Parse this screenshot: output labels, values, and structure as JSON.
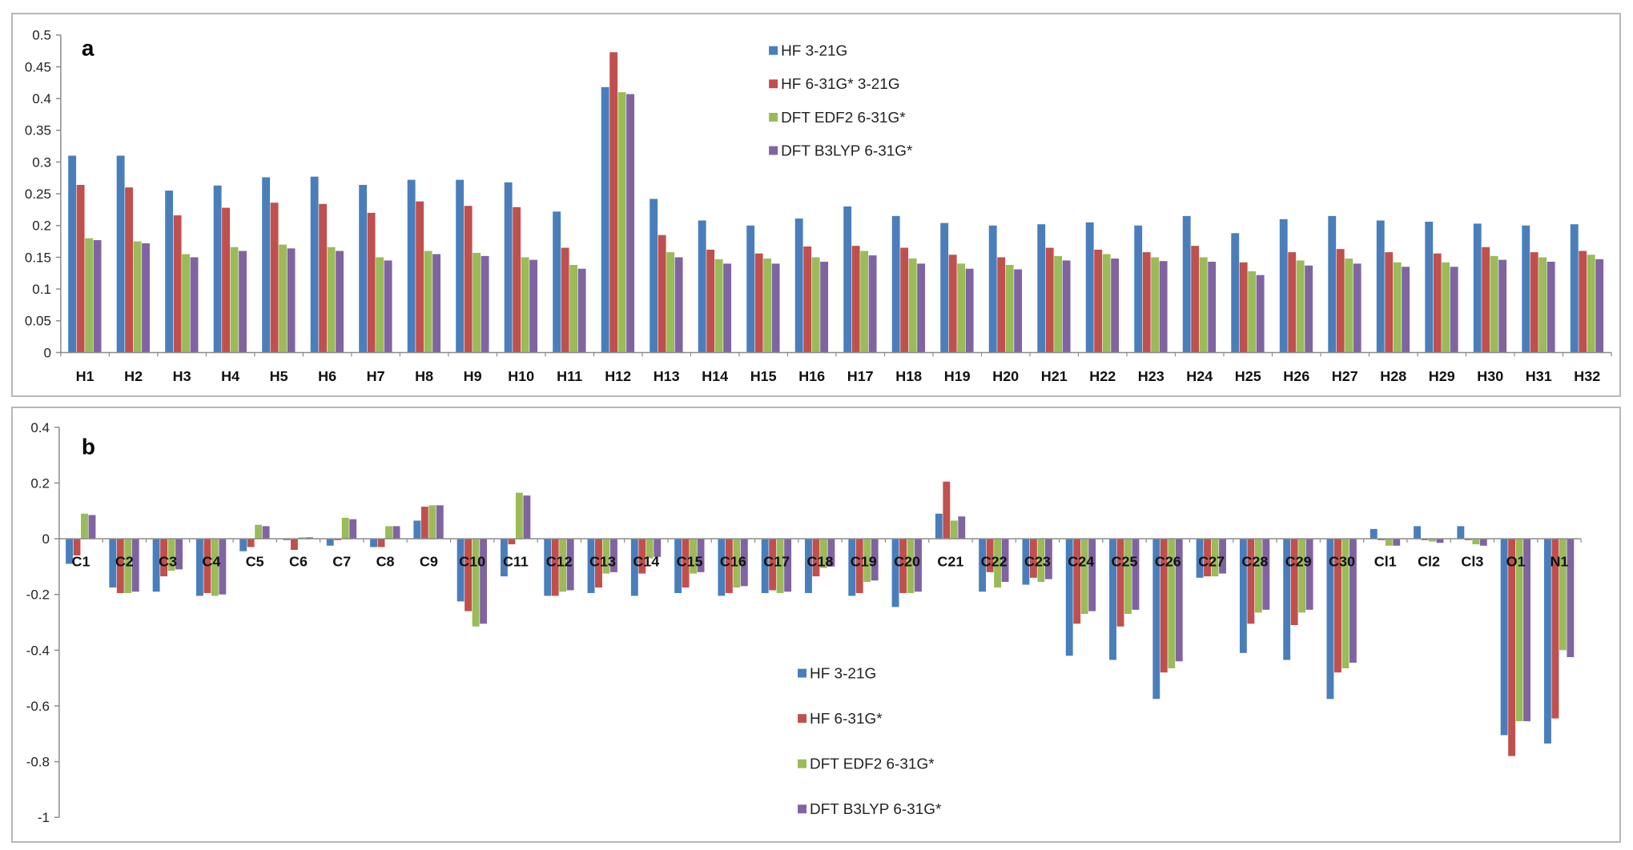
{
  "colors": {
    "hf321g": "#4a7ebb",
    "hf631g": "#c0504d",
    "edf2": "#9bbb59",
    "b3lyp": "#8064a2",
    "axis": "#8c8c8c",
    "grid": "#d9d9d9"
  },
  "chart_data": [
    {
      "type": "bar",
      "panel_label": "a",
      "categories": [
        "H1",
        "H2",
        "H3",
        "H4",
        "H5",
        "H6",
        "H7",
        "H8",
        "H9",
        "H10",
        "H11",
        "H12",
        "H13",
        "H14",
        "H15",
        "H16",
        "H17",
        "H18",
        "H19",
        "H20",
        "H21",
        "H22",
        "H23",
        "H24",
        "H25",
        "H26",
        "H27",
        "H28",
        "H29",
        "H30",
        "H31",
        "H32"
      ],
      "ylim": [
        0,
        0.5
      ],
      "yticks": [
        "0",
        "0.05",
        "0.1",
        "0.15",
        "0.2",
        "0.25",
        "0.3",
        "0.35",
        "0.4",
        "0.45",
        "0.5"
      ],
      "ytick_values": [
        0,
        0.05,
        0.1,
        0.15,
        0.2,
        0.25,
        0.3,
        0.35,
        0.4,
        0.45,
        0.5
      ],
      "legend_position": "top-center",
      "series": [
        {
          "name": "HF 3-21G",
          "color_key": "hf321g",
          "values": [
            0.31,
            0.31,
            0.255,
            0.263,
            0.276,
            0.277,
            0.264,
            0.272,
            0.272,
            0.268,
            0.222,
            0.418,
            0.242,
            0.208,
            0.2,
            0.211,
            0.23,
            0.215,
            0.204,
            0.2,
            0.202,
            0.205,
            0.2,
            0.215,
            0.188,
            0.21,
            0.215,
            0.208,
            0.206,
            0.203,
            0.2,
            0.202
          ]
        },
        {
          "name": "HF 6-31G* 3-21G",
          "color_key": "hf631g",
          "values": [
            0.264,
            0.26,
            0.216,
            0.228,
            0.236,
            0.234,
            0.22,
            0.238,
            0.231,
            0.229,
            0.165,
            0.473,
            0.185,
            0.162,
            0.156,
            0.167,
            0.168,
            0.165,
            0.154,
            0.15,
            0.165,
            0.162,
            0.158,
            0.168,
            0.142,
            0.158,
            0.163,
            0.158,
            0.156,
            0.166,
            0.158,
            0.16
          ]
        },
        {
          "name": "DFT EDF2 6-31G*",
          "color_key": "edf2",
          "values": [
            0.18,
            0.175,
            0.155,
            0.166,
            0.17,
            0.166,
            0.15,
            0.16,
            0.157,
            0.15,
            0.138,
            0.41,
            0.158,
            0.147,
            0.148,
            0.15,
            0.16,
            0.148,
            0.14,
            0.138,
            0.152,
            0.155,
            0.15,
            0.15,
            0.128,
            0.145,
            0.148,
            0.142,
            0.142,
            0.152,
            0.15,
            0.154
          ]
        },
        {
          "name": "DFT B3LYP 6-31G*",
          "color_key": "b3lyp",
          "values": [
            0.177,
            0.172,
            0.15,
            0.16,
            0.164,
            0.16,
            0.145,
            0.155,
            0.152,
            0.146,
            0.132,
            0.407,
            0.15,
            0.14,
            0.14,
            0.143,
            0.153,
            0.14,
            0.132,
            0.131,
            0.145,
            0.148,
            0.144,
            0.143,
            0.122,
            0.137,
            0.14,
            0.135,
            0.135,
            0.146,
            0.143,
            0.147
          ]
        }
      ]
    },
    {
      "type": "bar",
      "panel_label": "b",
      "categories": [
        "C1",
        "C2",
        "C3",
        "C4",
        "C5",
        "C6",
        "C7",
        "C8",
        "C9",
        "C10",
        "C11",
        "C12",
        "C13",
        "C14",
        "C15",
        "C16",
        "C17",
        "C18",
        "C19",
        "C20",
        "C21",
        "C22",
        "C23",
        "C24",
        "C25",
        "C26",
        "C27",
        "C28",
        "C29",
        "C30",
        "Cl1",
        "Cl2",
        "Cl3",
        "O1",
        "N1"
      ],
      "ylim": [
        -1,
        0.4
      ],
      "yticks": [
        "0.4",
        "0.2",
        "0",
        "-0.2",
        "-0.4",
        "-0.6",
        "-0.8",
        "-1"
      ],
      "ytick_values": [
        0.4,
        0.2,
        0,
        -0.2,
        -0.4,
        -0.6,
        -0.8,
        -1
      ],
      "legend_position": "bottom-center",
      "series": [
        {
          "name": "HF 3-21G",
          "color_key": "hf321g",
          "values": [
            -0.09,
            -0.175,
            -0.19,
            -0.205,
            -0.045,
            -0.005,
            -0.025,
            -0.03,
            0.065,
            -0.225,
            -0.135,
            -0.205,
            -0.195,
            -0.205,
            -0.195,
            -0.205,
            -0.195,
            -0.195,
            -0.205,
            -0.245,
            0.09,
            -0.19,
            -0.165,
            -0.42,
            -0.435,
            -0.575,
            -0.14,
            -0.41,
            -0.435,
            -0.575,
            0.035,
            0.045,
            0.045,
            -0.705,
            -0.735
          ]
        },
        {
          "name": "HF 6-31G*",
          "color_key": "hf631g",
          "values": [
            -0.06,
            -0.195,
            -0.135,
            -0.195,
            -0.03,
            -0.04,
            -0.005,
            -0.03,
            0.115,
            -0.26,
            -0.02,
            -0.205,
            -0.175,
            -0.125,
            -0.175,
            -0.195,
            -0.185,
            -0.135,
            -0.195,
            -0.195,
            0.205,
            -0.12,
            -0.14,
            -0.305,
            -0.315,
            -0.48,
            -0.135,
            -0.305,
            -0.31,
            -0.48,
            -0.005,
            -0.005,
            -0.005,
            -0.78,
            -0.645
          ]
        },
        {
          "name": "DFT EDF2 6-31G*",
          "color_key": "edf2",
          "values": [
            0.09,
            -0.195,
            -0.115,
            -0.205,
            0.05,
            0.005,
            0.075,
            0.045,
            0.12,
            -0.315,
            0.165,
            -0.19,
            -0.125,
            -0.07,
            -0.125,
            -0.175,
            -0.195,
            -0.105,
            -0.155,
            -0.195,
            0.065,
            -0.175,
            -0.155,
            -0.27,
            -0.27,
            -0.465,
            -0.135,
            -0.265,
            -0.265,
            -0.465,
            -0.025,
            -0.01,
            -0.02,
            -0.655,
            -0.4
          ]
        },
        {
          "name": "DFT B3LYP 6-31G*",
          "color_key": "b3lyp",
          "values": [
            0.085,
            -0.19,
            -0.11,
            -0.2,
            0.045,
            0.005,
            0.07,
            0.045,
            0.12,
            -0.305,
            0.155,
            -0.185,
            -0.12,
            -0.065,
            -0.12,
            -0.17,
            -0.19,
            -0.1,
            -0.15,
            -0.19,
            0.08,
            -0.155,
            -0.145,
            -0.26,
            -0.255,
            -0.44,
            -0.125,
            -0.255,
            -0.255,
            -0.445,
            -0.025,
            -0.015,
            -0.025,
            -0.655,
            -0.425
          ]
        }
      ]
    }
  ]
}
